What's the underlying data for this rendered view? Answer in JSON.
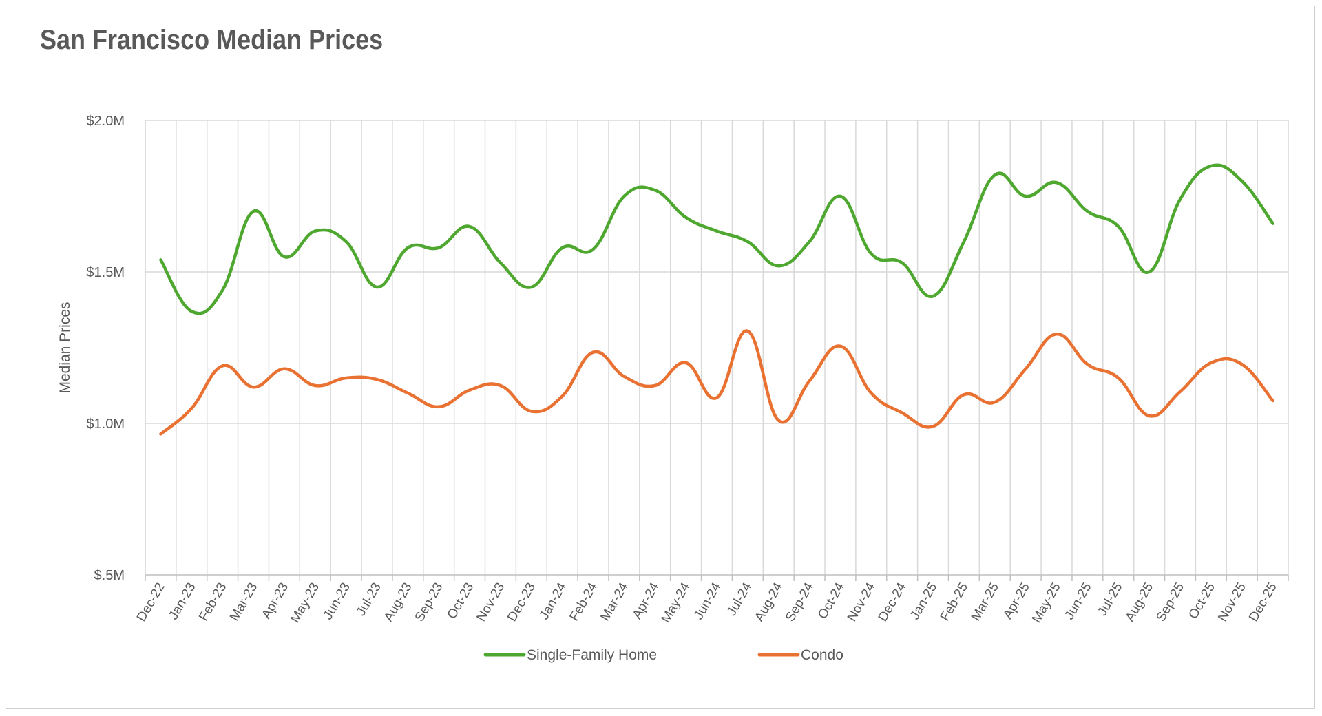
{
  "chart_data": {
    "type": "line",
    "title": "San Francisco Median Prices",
    "ylabel": "Median Prices",
    "xlabel": "",
    "ylim": [
      500000,
      2000000
    ],
    "yticks": [
      {
        "value": 500000,
        "label": "$.5M"
      },
      {
        "value": 1000000,
        "label": "$1.0M"
      },
      {
        "value": 1500000,
        "label": "$1.5M"
      },
      {
        "value": 2000000,
        "label": "$2.0M"
      }
    ],
    "grid": true,
    "legend": "bottom",
    "categories": [
      "Dec-22",
      "Jan-23",
      "Feb-23",
      "Mar-23",
      "Apr-23",
      "May-23",
      "Jun-23",
      "Jul-23",
      "Aug-23",
      "Sep-23",
      "Oct-23",
      "Nov-23",
      "Dec-23",
      "Jan-24",
      "Feb-24",
      "Mar-24",
      "Apr-24",
      "May-24",
      "Jun-24",
      "Jul-24",
      "Aug-24",
      "Sep-24",
      "Oct-24",
      "Nov-24",
      "Dec-24",
      "Jan-25",
      "Feb-25",
      "Mar-25",
      "Apr-25",
      "May-25",
      "Jun-25",
      "Jul-25",
      "Aug-25",
      "Sep-25",
      "Oct-25",
      "Nov-25",
      "Dec-25"
    ],
    "series": [
      {
        "name": "Single-Family Home",
        "color": "#4ea72e",
        "values": [
          1540000,
          1370000,
          1440000,
          1700000,
          1550000,
          1635000,
          1600000,
          1450000,
          1580000,
          1580000,
          1650000,
          1530000,
          1450000,
          1580000,
          1575000,
          1750000,
          1770000,
          1680000,
          1635000,
          1600000,
          1520000,
          1600000,
          1750000,
          1560000,
          1530000,
          1420000,
          1600000,
          1820000,
          1750000,
          1795000,
          1700000,
          1650000,
          1500000,
          1740000,
          1850000,
          1800000,
          1660000
        ]
      },
      {
        "name": "Condo",
        "color": "#e97132",
        "values": [
          965000,
          1050000,
          1190000,
          1120000,
          1180000,
          1125000,
          1150000,
          1145000,
          1100000,
          1055000,
          1110000,
          1125000,
          1040000,
          1090000,
          1235000,
          1155000,
          1125000,
          1200000,
          1085000,
          1305000,
          1010000,
          1140000,
          1255000,
          1100000,
          1035000,
          990000,
          1095000,
          1070000,
          1180000,
          1295000,
          1195000,
          1150000,
          1025000,
          1105000,
          1200000,
          1195000,
          1075000
        ]
      }
    ]
  }
}
